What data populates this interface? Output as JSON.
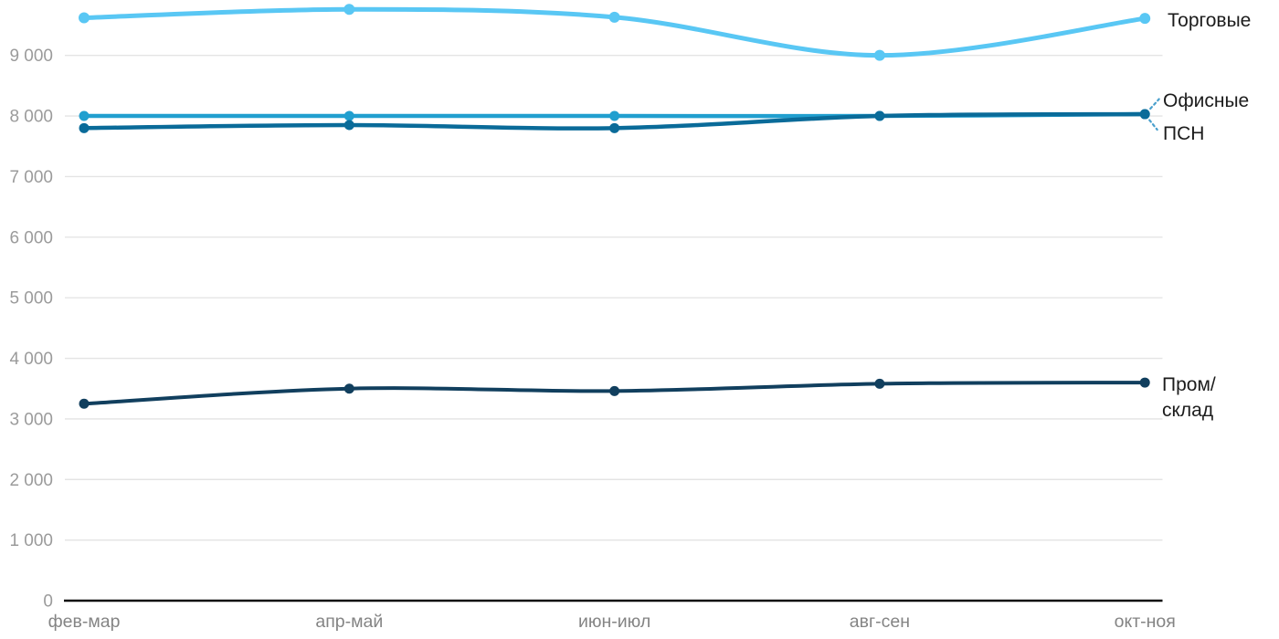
{
  "chart_data": {
    "type": "line",
    "title": "",
    "xlabel": "",
    "ylabel": "",
    "categories": [
      "фев-мар",
      "апр-май",
      "июн-июл",
      "авг-сен",
      "окт-ноя"
    ],
    "series": [
      {
        "name": "Торговые",
        "values": [
          9620,
          9760,
          9630,
          9000,
          9610
        ],
        "color": "#59c7f4"
      },
      {
        "name": "Офисные",
        "values": [
          8000,
          8000,
          8000,
          8000,
          8030
        ],
        "color": "#219fcf"
      },
      {
        "name": "ПСН",
        "values": [
          7800,
          7850,
          7800,
          8000,
          8030
        ],
        "color": "#0a6b99"
      },
      {
        "name": "Пром/склад",
        "values": [
          3250,
          3500,
          3460,
          3580,
          3600
        ],
        "color": "#113f5e"
      }
    ],
    "y_ticks": [
      {
        "value": 0,
        "label": "0"
      },
      {
        "value": 1000,
        "label": "1 000"
      },
      {
        "value": 2000,
        "label": "2 000"
      },
      {
        "value": 3000,
        "label": "3 000"
      },
      {
        "value": 4000,
        "label": "4 000"
      },
      {
        "value": 5000,
        "label": "5 000"
      },
      {
        "value": 6000,
        "label": "6 000"
      },
      {
        "value": 7000,
        "label": "7 000"
      },
      {
        "value": 8000,
        "label": "8 000"
      },
      {
        "value": 9000,
        "label": "9 000"
      }
    ],
    "ylim": [
      0,
      10000
    ],
    "grid": "horizontal",
    "legend_position": "right-edge-labels",
    "styles": {
      "grid_color": "#e4e4e4",
      "axis_color": "#0d0d0d",
      "y_tick_color": "#9b9b9b",
      "x_tick_color": "#848484",
      "label_color": "#1c1c1c",
      "connector_color": "#4aa0cd",
      "background": "#ffffff"
    }
  }
}
